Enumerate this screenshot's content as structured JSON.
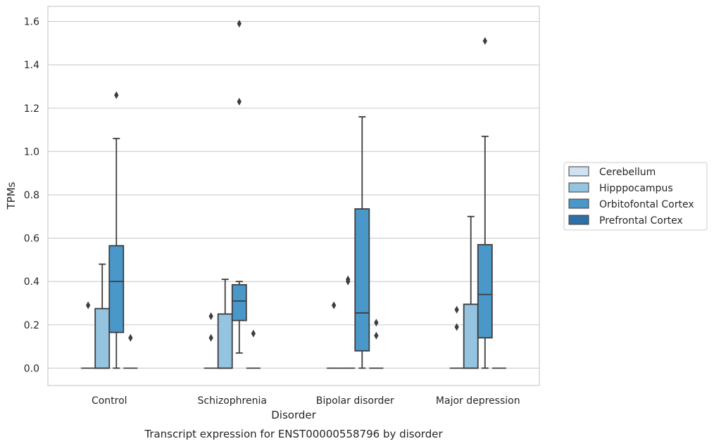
{
  "chart_data": {
    "type": "box",
    "caption": "Transcript expression for ENST00000558796 by disorder",
    "xlabel": "Disorder",
    "ylabel": "TPMs",
    "ylim": [
      -0.08,
      1.67
    ],
    "yticks": [
      0.0,
      0.2,
      0.4,
      0.6,
      0.8,
      1.0,
      1.2,
      1.4,
      1.6
    ],
    "grid": "horizontal",
    "legend_position": "right",
    "categories": [
      "Control",
      "Schizophrenia",
      "Bipolar disorder",
      "Major depression"
    ],
    "series": [
      {
        "name": "Cerebellum",
        "color": "#d0e1f2",
        "boxes": [
          {
            "min": 0,
            "q1": 0,
            "median": 0,
            "q3": 0,
            "max": 0,
            "outliers": [
              0.29
            ]
          },
          {
            "min": 0,
            "q1": 0,
            "median": 0,
            "q3": 0,
            "max": 0,
            "outliers": [
              0.14,
              0.24
            ]
          },
          {
            "min": 0,
            "q1": 0,
            "median": 0,
            "q3": 0,
            "max": 0,
            "outliers": [
              0.29
            ]
          },
          {
            "min": 0,
            "q1": 0,
            "median": 0,
            "q3": 0,
            "max": 0,
            "outliers": [
              0.19,
              0.27
            ]
          }
        ]
      },
      {
        "name": "Hipppocampus",
        "color": "#94c4df",
        "boxes": [
          {
            "min": 0,
            "q1": 0,
            "median": 0,
            "q3": 0.275,
            "max": 0.48,
            "outliers": []
          },
          {
            "min": 0,
            "q1": 0,
            "median": 0,
            "q3": 0.25,
            "max": 0.41,
            "outliers": []
          },
          {
            "min": 0,
            "q1": 0,
            "median": 0,
            "q3": 0,
            "max": 0,
            "outliers": [
              0.4,
              0.41
            ]
          },
          {
            "min": 0,
            "q1": 0,
            "median": 0,
            "q3": 0.295,
            "max": 0.7,
            "outliers": []
          }
        ]
      },
      {
        "name": "Orbitofontal Cortex",
        "color": "#4a98c9",
        "boxes": [
          {
            "min": 0,
            "q1": 0.165,
            "median": 0.4,
            "q3": 0.565,
            "max": 1.06,
            "outliers": [
              1.26
            ]
          },
          {
            "min": 0.07,
            "q1": 0.22,
            "median": 0.31,
            "q3": 0.385,
            "max": 0.4,
            "outliers": [
              1.23,
              1.59
            ]
          },
          {
            "min": 0,
            "q1": 0.08,
            "median": 0.255,
            "q3": 0.735,
            "max": 1.16,
            "outliers": []
          },
          {
            "min": 0,
            "q1": 0.14,
            "median": 0.34,
            "q3": 0.57,
            "max": 1.07,
            "outliers": [
              1.51
            ]
          }
        ]
      },
      {
        "name": "Prefrontal Cortex",
        "color": "#2e6fa7",
        "boxes": [
          {
            "min": 0,
            "q1": 0,
            "median": 0,
            "q3": 0,
            "max": 0,
            "outliers": [
              0.14
            ]
          },
          {
            "min": 0,
            "q1": 0,
            "median": 0,
            "q3": 0,
            "max": 0,
            "outliers": [
              0.16
            ]
          },
          {
            "min": 0,
            "q1": 0,
            "median": 0,
            "q3": 0,
            "max": 0,
            "outliers": [
              0.15,
              0.21
            ]
          },
          {
            "min": 0,
            "q1": 0,
            "median": 0,
            "q3": 0,
            "max": 0,
            "outliers": []
          }
        ]
      }
    ]
  }
}
